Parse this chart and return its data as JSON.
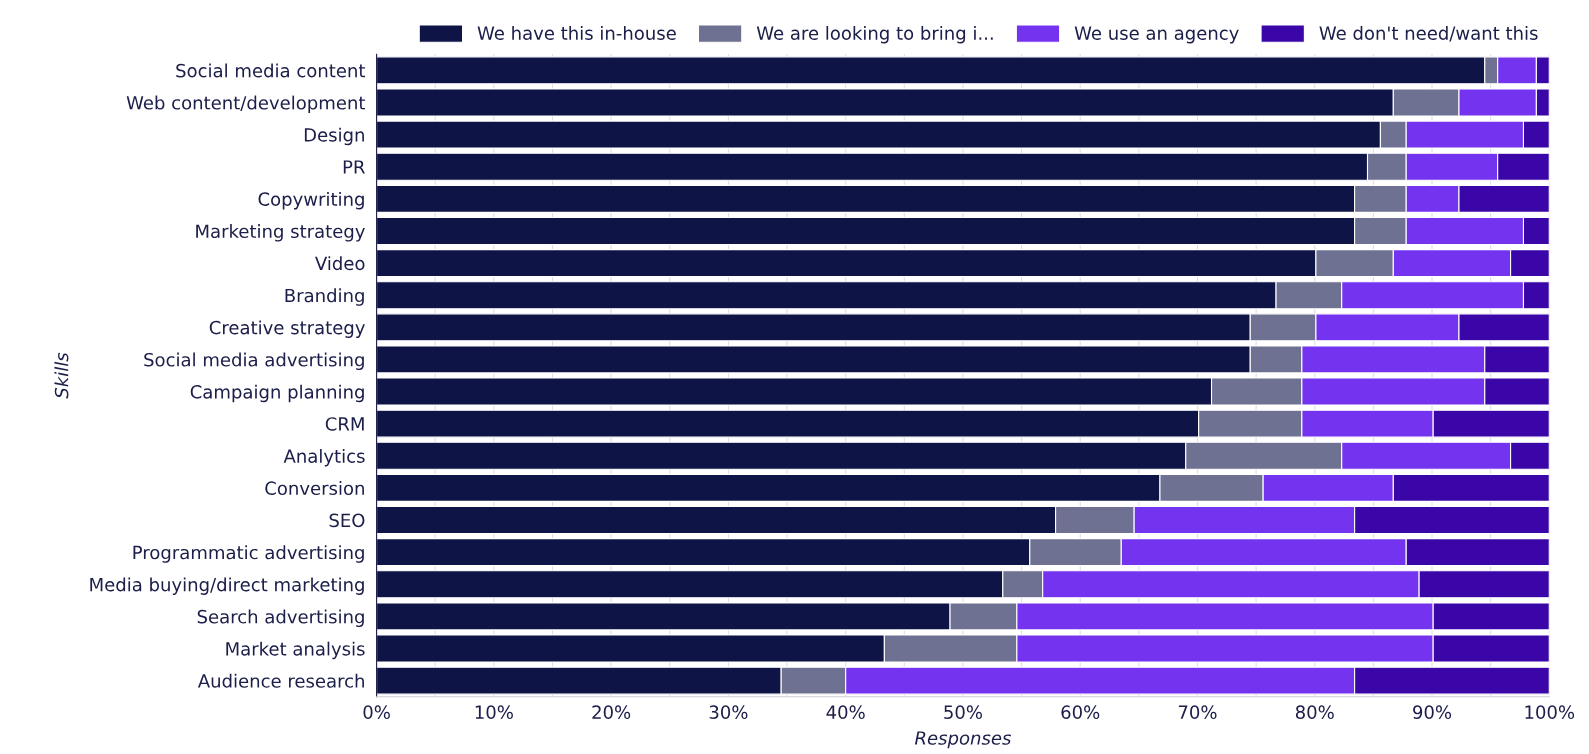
{
  "chart_data": {
    "type": "bar",
    "orientation": "horizontal",
    "stacked": true,
    "xlabel": "Responses",
    "ylabel": "Skills",
    "categories": [
      "Social media content",
      "Web content/development",
      "Design",
      "PR",
      "Copywriting",
      "Marketing strategy",
      "Video",
      "Branding",
      "Creative strategy",
      "Social media advertising",
      "Campaign planning",
      "CRM",
      "Analytics",
      "Conversion",
      "SEO",
      "Programmatic advertising",
      "Media buying/direct marketing",
      "Search advertising",
      "Market analysis",
      "Audience research"
    ],
    "series": [
      {
        "name": "We have this in-house",
        "color": "#0f1446",
        "values": [
          94.5,
          86.7,
          85.6,
          84.5,
          83.4,
          83.4,
          80.1,
          76.7,
          74.5,
          74.5,
          71.2,
          70.1,
          69.0,
          66.8,
          57.9,
          55.7,
          53.4,
          48.9,
          43.3,
          34.5
        ]
      },
      {
        "name": "We are looking to bring i...",
        "color": "#6e7191",
        "values": [
          1.1,
          5.6,
          2.2,
          3.3,
          4.4,
          4.4,
          6.6,
          5.6,
          5.6,
          4.4,
          7.7,
          8.8,
          13.3,
          8.8,
          6.7,
          7.8,
          3.4,
          5.7,
          11.3,
          5.5
        ]
      },
      {
        "name": "We use an agency",
        "color": "#7433ef",
        "values": [
          3.3,
          6.6,
          10.0,
          7.8,
          4.5,
          10.0,
          10.0,
          15.5,
          12.2,
          15.6,
          15.6,
          11.2,
          14.4,
          11.1,
          18.8,
          24.3,
          32.1,
          35.5,
          35.5,
          43.4
        ]
      },
      {
        "name": "We don't need/want this",
        "color": "#3a06a8",
        "values": [
          1.1,
          1.1,
          2.2,
          4.4,
          7.7,
          2.2,
          3.3,
          2.2,
          7.7,
          5.5,
          5.5,
          9.9,
          3.3,
          13.3,
          16.6,
          12.2,
          11.1,
          9.9,
          9.9,
          16.6
        ]
      }
    ],
    "xlim": [
      0,
      100
    ],
    "xticks": [
      {
        "value": 0,
        "label": "0%"
      },
      {
        "value": 5,
        "label": null
      },
      {
        "value": 10,
        "label": "10%"
      },
      {
        "value": 15,
        "label": null
      },
      {
        "value": 20,
        "label": "20%"
      },
      {
        "value": 25,
        "label": null
      },
      {
        "value": 30,
        "label": "30%"
      },
      {
        "value": 35,
        "label": null
      },
      {
        "value": 40,
        "label": "40%"
      },
      {
        "value": 45,
        "label": null
      },
      {
        "value": 50,
        "label": "50%"
      },
      {
        "value": 55,
        "label": null
      },
      {
        "value": 60,
        "label": "60%"
      },
      {
        "value": 65,
        "label": null
      },
      {
        "value": 70,
        "label": "70%"
      },
      {
        "value": 75,
        "label": null
      },
      {
        "value": 80,
        "label": "80%"
      },
      {
        "value": 85,
        "label": null
      },
      {
        "value": 90,
        "label": "90%"
      },
      {
        "value": 95,
        "label": null
      },
      {
        "value": 100,
        "label": "100%"
      }
    ],
    "grid": "x",
    "legend": "top right"
  }
}
